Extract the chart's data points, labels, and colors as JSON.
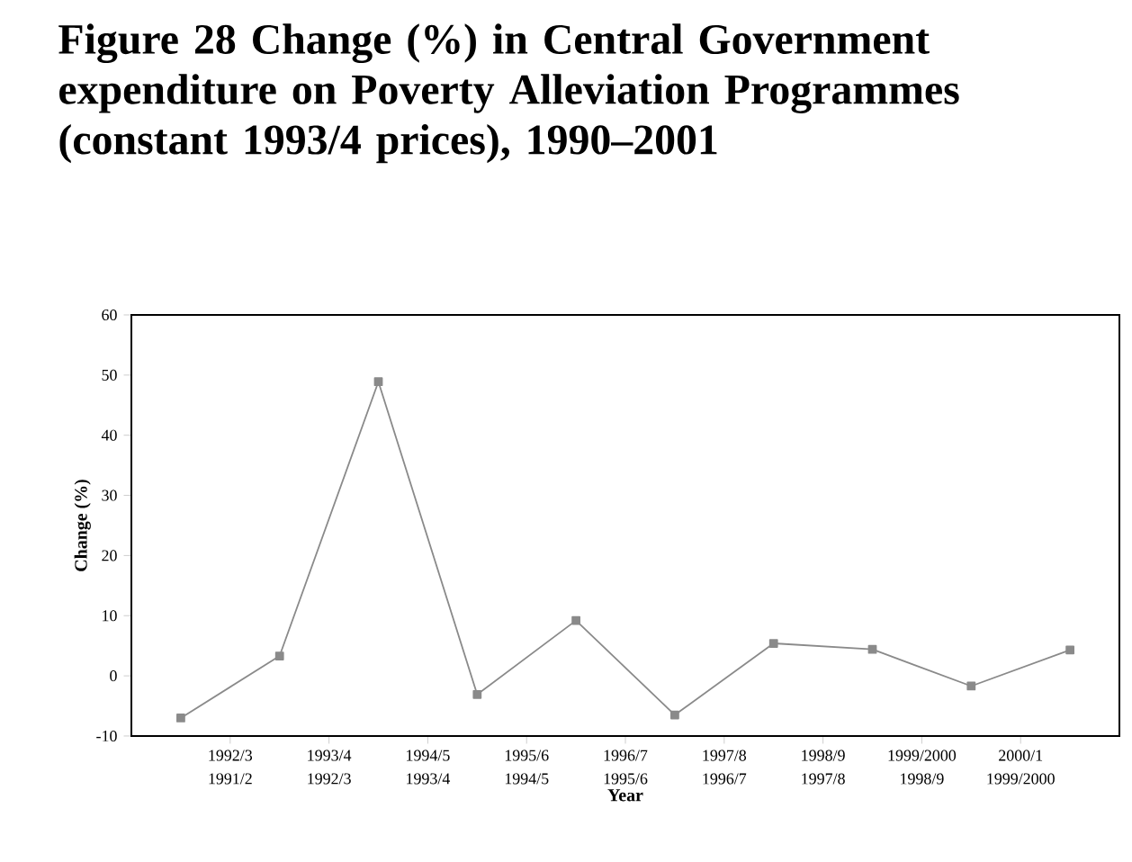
{
  "chart_data": {
    "type": "line",
    "title": "Figure 28  Change (%) in Central Government expenditure on Poverty Alleviation Programmes (constant 1993/4 prices), 1990–2001",
    "xlabel": "Year",
    "ylabel": "Change (%)",
    "categories": [
      null,
      null,
      null,
      null,
      null,
      null,
      null,
      null,
      null,
      null
    ],
    "series": [
      {
        "color": "#8a8a8a",
        "values": [
          -7.0,
          3.3,
          48.9,
          -3.1,
          9.2,
          -6.5,
          5.4,
          4.4,
          -1.7,
          4.3
        ]
      }
    ],
    "annotations": [
      "1992/3 1991/2",
      "1993/4 1992/3",
      "1994/5 1993/4",
      "1995/6 1994/5",
      "1996/7 1995/6",
      "1997/8 1996/7",
      "1998/9 1997/8",
      "1999/2000 1998/9",
      "2000/1 1999/2000"
    ],
    "ylim": [
      -10,
      60
    ],
    "yticks": [
      -10,
      0,
      10,
      20,
      30,
      40,
      50,
      60
    ],
    "marker": "square",
    "line_style": "solid",
    "grid": false
  }
}
